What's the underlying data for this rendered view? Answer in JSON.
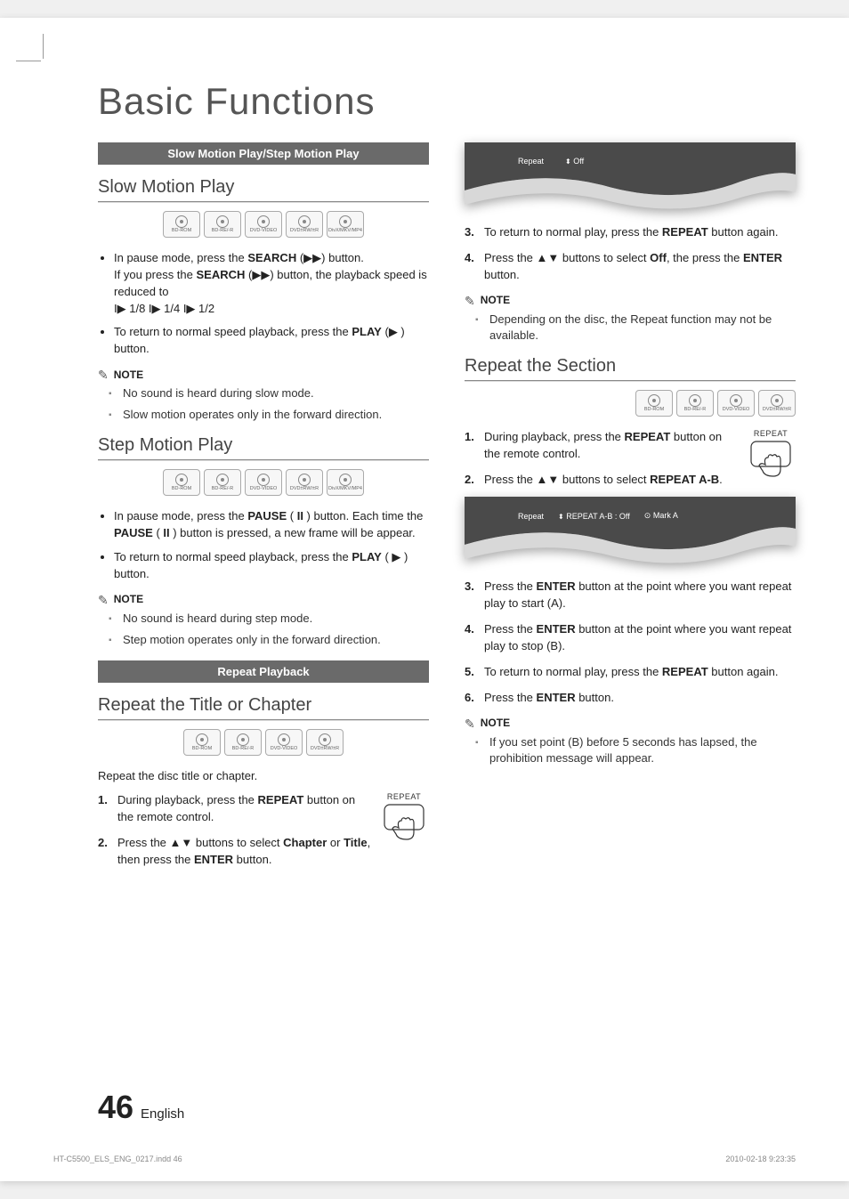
{
  "page": {
    "title": "Basic Functions",
    "number": "46",
    "language": "English",
    "indd_file": "HT-C5500_ELS_ENG_0217.indd   46",
    "indd_timestamp": "2010-02-18   9:23:35"
  },
  "colors": {
    "section_bar_bg": "#6a6a6a",
    "section_bar_text": "#ffffff",
    "heading": "#444444",
    "body": "#222222",
    "osd_dark": "#4a4a4a",
    "osd_light": "#d8d8d8"
  },
  "sections": {
    "bar1": "Slow Motion Play/Step Motion Play",
    "bar2": "Repeat Playback"
  },
  "disc_sets": {
    "five": [
      "BD-ROM",
      "BD-RE/-R",
      "DVD-VIDEO",
      "DVD±RW/±R",
      "DivX/MKV/MP4"
    ],
    "four": [
      "BD-ROM",
      "BD-RE/-R",
      "DVD-VIDEO",
      "DVD±RW/±R"
    ]
  },
  "slow_motion": {
    "heading": "Slow Motion Play",
    "bullets": [
      "In pause mode, press the <b>SEARCH</b> (<span class='glyph'>▶▶</span>) button.<br>If you press the <b>SEARCH</b> (<span class='glyph'>▶▶</span>) button, the playback speed is reduced to<br><span class='glyph'>I▶</span> 1/8 <span class='glyph'>I▶</span> 1/4 <span class='glyph'>I▶</span> 1/2",
      "To return to normal speed playback, press the <b>PLAY</b> (<span class='glyph'>▶</span> ) button."
    ],
    "note_label": "NOTE",
    "notes": [
      "No sound is heard during slow mode.",
      "Slow motion operates only in the forward direction."
    ]
  },
  "step_motion": {
    "heading": "Step Motion Play",
    "bullets": [
      "In pause mode, press the <b>PAUSE</b> ( <b>II</b> ) button. Each time the <b>PAUSE</b> ( <b>II</b> ) button is pressed, a new frame will be appear.",
      "To return to normal speed playback, press the <b>PLAY</b> ( <span class='glyph'>▶</span> ) button."
    ],
    "note_label": "NOTE",
    "notes": [
      "No sound is heard during step mode.",
      "Step motion operates only in the forward direction."
    ]
  },
  "repeat_title": {
    "heading": "Repeat the Title or Chapter",
    "intro": "Repeat the disc title or chapter.",
    "remote_label": "REPEAT",
    "list": [
      "During playback, press the <b>REPEAT</b> button on the remote control.",
      "Press the <span class='glyph'>▲▼</span> buttons to select <b>Chapter</b> or <b>Title</b>, then press the <b>ENTER</b> button."
    ]
  },
  "osd1": {
    "label": "Repeat",
    "value": "Off"
  },
  "repeat_title_cont": {
    "list": [
      "To return to normal play, press the <b>REPEAT</b> button again.",
      "Press the <span class='glyph'>▲▼</span> buttons to select <b>Off</b>, the press the <b>ENTER</b> button."
    ],
    "note_label": "NOTE",
    "notes": [
      "Depending on the disc, the Repeat function may not be available."
    ]
  },
  "repeat_section": {
    "heading": "Repeat the Section",
    "remote_label": "REPEAT",
    "list1": [
      "During playback, press the <b>REPEAT</b> button on the remote control.",
      "Press the <span class='glyph'>▲▼</span> buttons to select <b>REPEAT A-B</b>."
    ],
    "osd2": {
      "label": "Repeat",
      "value": "REPEAT A-B : Off",
      "mark": "Mark A"
    },
    "list2": [
      "Press the <b>ENTER</b> button at the point where you want repeat play to start (A).",
      "Press the <b>ENTER</b> button at the point where you want repeat play to stop (B).",
      "To return to normal play, press the <b>REPEAT</b> button again.",
      "Press the <b>ENTER</b> button."
    ],
    "note_label": "NOTE",
    "notes": [
      "If you set point (B) before 5 seconds has lapsed, the prohibition message will appear."
    ]
  }
}
